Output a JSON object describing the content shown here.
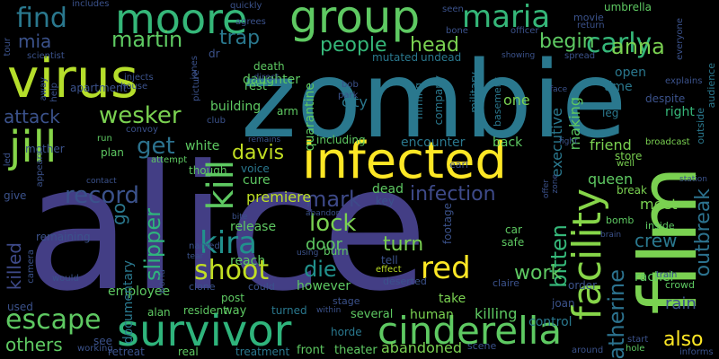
{
  "cloud": {
    "background": "#000000",
    "palette": [
      "#440154",
      "#3b528b",
      "#21918c",
      "#5ec962",
      "#fde725"
    ],
    "words": [
      "alice",
      "zombie",
      "virus",
      "film",
      "infected",
      "group",
      "survivor",
      "moore",
      "cinderella",
      "jill",
      "maria",
      "find",
      "facility",
      "carly",
      "kill",
      "red",
      "kira",
      "shoot",
      "katherine",
      "escape",
      "people",
      "anna",
      "wesker",
      "martin",
      "record",
      "head",
      "infection",
      "mia",
      "trap",
      "begin",
      "get",
      "lock",
      "attack",
      "davis",
      "mark",
      "slipper",
      "bitten",
      "turn",
      "die",
      "work",
      "crew",
      "outbreak",
      "others",
      "killed",
      "also",
      "go",
      "executive",
      "premiere",
      "making",
      "right",
      "rain",
      "meet",
      "queen",
      "friend",
      "door",
      "release",
      "reach",
      "employee",
      "documentary",
      "however",
      "take",
      "human",
      "killing",
      "control",
      "rachel",
      "abandoned",
      "several",
      "turned",
      "front",
      "theater",
      "treatment",
      "resident",
      "alan",
      "post",
      "could",
      "way",
      "clone",
      "death",
      "daughter",
      "rest",
      "mutated",
      "undead",
      "military",
      "city",
      "company",
      "filming",
      "basement",
      "one",
      "time",
      "open",
      "leg",
      "store",
      "break",
      "bomb",
      "inside",
      "crowd",
      "outside",
      "audience",
      "broadcast",
      "well",
      "movie",
      "return",
      "umbrella",
      "seen",
      "bone",
      "officer",
      "tour",
      "scientist",
      "includes",
      "quickly",
      "agrees",
      "direct",
      "dr",
      "jones",
      "picture",
      "injects",
      "apartment",
      "house",
      "mother",
      "convoy",
      "building",
      "arm",
      "quarantine",
      "bob",
      "park",
      "including",
      "voice",
      "though",
      "white",
      "plan",
      "run",
      "attempt",
      "encounter",
      "back",
      "dead",
      "key",
      "earl",
      "cure",
      "footage",
      "car",
      "safe",
      "tell",
      "burn",
      "effect",
      "deserted",
      "stage",
      "scene",
      "around",
      "hole",
      "start",
      "informs",
      "retreat",
      "working",
      "see",
      "real",
      "joan",
      "claire",
      "order",
      "train",
      "everyone",
      "explains",
      "spread",
      "showing",
      "despite",
      "station",
      "fight",
      "brain",
      "offer",
      "zone",
      "used",
      "would",
      "remaining",
      "camera",
      "give",
      "led",
      "appears",
      "contact",
      "named",
      "bite",
      "abandon",
      "tear",
      "within",
      "horde",
      "using",
      "remains",
      "club",
      "face",
      "away",
      "help",
      "world"
    ]
  }
}
